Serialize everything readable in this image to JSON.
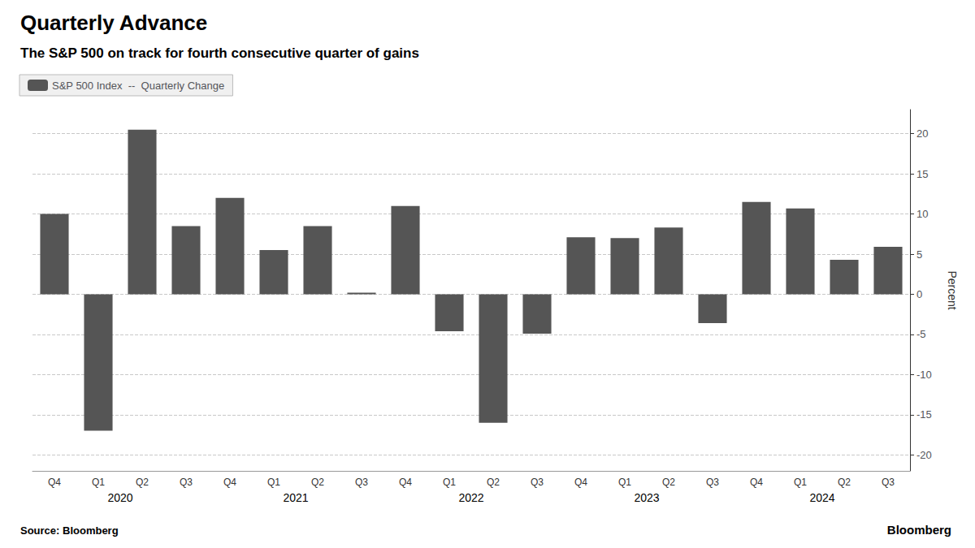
{
  "chart_data": {
    "type": "bar",
    "title": "Quarterly Advance",
    "subtitle": "The S&P 500 on track for fourth consecutive quarter of gains",
    "ylabel": "Percent",
    "categories": [
      "Q4",
      "Q1",
      "Q2",
      "Q3",
      "Q4",
      "Q1",
      "Q2",
      "Q3",
      "Q4",
      "Q1",
      "Q2",
      "Q3",
      "Q4",
      "Q1",
      "Q2",
      "Q3",
      "Q4",
      "Q1",
      "Q2",
      "Q3"
    ],
    "series": [
      {
        "name": "S&P 500 Index  --  Quarterly Change",
        "color": "#555555",
        "values": [
          10.0,
          -17.0,
          20.5,
          8.5,
          12.0,
          5.5,
          8.5,
          0.2,
          11.0,
          -4.6,
          -16.0,
          -4.9,
          7.1,
          7.0,
          8.3,
          -3.6,
          11.5,
          10.7,
          4.3,
          5.9
        ]
      }
    ],
    "ylim": [
      -22,
      23
    ],
    "yticks": [
      -20,
      -15,
      -10,
      -5,
      0,
      5,
      10,
      15,
      20
    ],
    "grid": true,
    "legend": "upper left",
    "annotations": [
      {
        "text": "2020",
        "x": 1.5
      },
      {
        "text": "2021",
        "x": 5.5
      },
      {
        "text": "2022",
        "x": 9.5
      },
      {
        "text": "2023",
        "x": 13.5
      },
      {
        "text": "2024",
        "x": 17.5
      }
    ],
    "source": "Source: Bloomberg",
    "brand": "Bloomberg"
  }
}
